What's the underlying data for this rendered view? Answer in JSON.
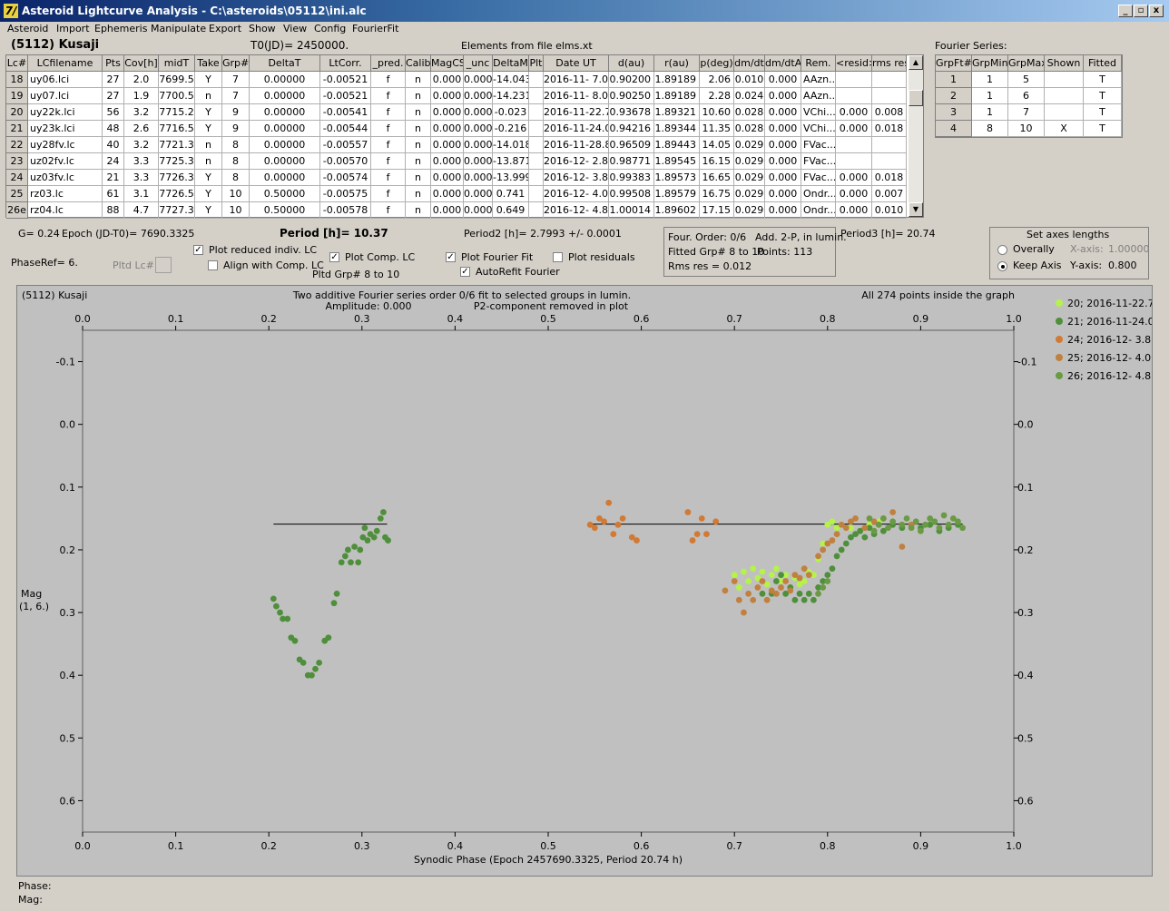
{
  "window": {
    "title": "Asteroid Lightcurve Analysis - C:\\asteroids\\05112\\ini.alc",
    "icon_glyph": "7/",
    "btn_min": "_",
    "btn_restore": "▫",
    "btn_close": "x"
  },
  "menu": [
    "Asteroid",
    "Import",
    "Ephemeris",
    "Manipulate",
    "Export",
    "Show",
    "View",
    "Config",
    "FourierFit"
  ],
  "header": {
    "asteroid": "(5112) Kusaji",
    "t0": "T0(JD)= 2450000.",
    "elements": "Elements from file elms.xt"
  },
  "table": {
    "columns": [
      "Lc#",
      "LCfilename",
      "Pts",
      "Cov[h]",
      "midT",
      "Take",
      "Grp#",
      "DeltaT",
      "LtCorr.",
      "_pred.",
      "Calib.",
      "MagCS",
      "_unc",
      "DeltaM",
      "Plt",
      "Date UT",
      "d(au)",
      "r(au)",
      "p(deg)",
      "dm/dt",
      "dm/dtA",
      "Rem.",
      "<resid>",
      "rms res"
    ],
    "rows": [
      [
        "18",
        "uy06.lci",
        "27",
        "2.0",
        "7699.5",
        "Y",
        "7",
        "0.00000",
        "-0.00521",
        "f",
        "n",
        "0.000",
        "0.000",
        "-14.043",
        "",
        "2016-11- 7.0",
        "0.90200",
        "1.89189",
        "2.06",
        "0.010",
        "0.000",
        "AAzn...",
        "",
        ""
      ],
      [
        "19",
        "uy07.lci",
        "27",
        "1.9",
        "7700.5",
        "n",
        "7",
        "0.00000",
        "-0.00521",
        "f",
        "n",
        "0.000",
        "0.000",
        "-14.231",
        "",
        "2016-11- 8.0",
        "0.90250",
        "1.89189",
        "2.28",
        "0.024",
        "0.000",
        "AAzn...",
        "",
        ""
      ],
      [
        "20",
        "uy22k.lci",
        "56",
        "3.2",
        "7715.2",
        "Y",
        "9",
        "0.00000",
        "-0.00541",
        "f",
        "n",
        "0.000",
        "0.000",
        "-0.023",
        "",
        "2016-11-22.7",
        "0.93678",
        "1.89321",
        "10.60",
        "0.028",
        "0.000",
        "VChi...",
        "0.000",
        "0.008"
      ],
      [
        "21",
        "uy23k.lci",
        "48",
        "2.6",
        "7716.5",
        "Y",
        "9",
        "0.00000",
        "-0.00544",
        "f",
        "n",
        "0.000",
        "0.000",
        "-0.216",
        "",
        "2016-11-24.0",
        "0.94216",
        "1.89344",
        "11.35",
        "0.028",
        "0.000",
        "VChi...",
        "0.000",
        "0.018"
      ],
      [
        "22",
        "uy28fv.lc",
        "40",
        "3.2",
        "7721.3",
        "n",
        "8",
        "0.00000",
        "-0.00557",
        "f",
        "n",
        "0.000",
        "0.000",
        "-14.018",
        "",
        "2016-11-28.8",
        "0.96509",
        "1.89443",
        "14.05",
        "0.029",
        "0.000",
        "FVac...",
        "",
        ""
      ],
      [
        "23",
        "uz02fv.lc",
        "24",
        "3.3",
        "7725.3",
        "n",
        "8",
        "0.00000",
        "-0.00570",
        "f",
        "n",
        "0.000",
        "0.000",
        "-13.871",
        "",
        "2016-12- 2.8",
        "0.98771",
        "1.89545",
        "16.15",
        "0.029",
        "0.000",
        "FVac...",
        "",
        ""
      ],
      [
        "24",
        "uz03fv.lc",
        "21",
        "3.3",
        "7726.3",
        "Y",
        "8",
        "0.00000",
        "-0.00574",
        "f",
        "n",
        "0.000",
        "0.000",
        "-13.999",
        "",
        "2016-12- 3.8",
        "0.99383",
        "1.89573",
        "16.65",
        "0.029",
        "0.000",
        "FVac...",
        "0.000",
        "0.018"
      ],
      [
        "25",
        "rz03.lc",
        "61",
        "3.1",
        "7726.5",
        "Y",
        "10",
        "0.50000",
        "-0.00575",
        "f",
        "n",
        "0.000",
        "0.000",
        "0.741",
        "",
        "2016-12- 4.0",
        "0.99508",
        "1.89579",
        "16.75",
        "0.029",
        "0.000",
        "Ondr...",
        "0.000",
        "0.007"
      ],
      [
        "26e",
        "rz04.lc",
        "88",
        "4.7",
        "7727.3",
        "Y",
        "10",
        "0.50000",
        "-0.00578",
        "f",
        "n",
        "0.000",
        "0.000",
        "0.649",
        "",
        "2016-12- 4.8",
        "1.00014",
        "1.89602",
        "17.15",
        "0.029",
        "0.000",
        "Ondr...",
        "0.000",
        "0.010"
      ]
    ]
  },
  "fourier_series": {
    "title": "Fourier Series:",
    "columns": [
      "GrpFt#",
      "GrpMin",
      "GrpMax",
      "Shown",
      "Fitted"
    ],
    "rows": [
      [
        "1",
        "1",
        "5",
        "",
        "T"
      ],
      [
        "2",
        "1",
        "6",
        "",
        "T"
      ],
      [
        "3",
        "1",
        "7",
        "",
        "T"
      ],
      [
        "4",
        "8",
        "10",
        "X",
        "T"
      ]
    ]
  },
  "info": {
    "g": "G= 0.24",
    "epoch": "Epoch (JD-T0)= 7690.3325",
    "period": "Period [h]= 10.37",
    "period2": "Period2 [h]= 2.7993 +/- 0.0001",
    "period3": "Period3 [h]= 20.74",
    "phaseref": "PhaseRef= 6.",
    "pltd_lc": "Pltd Lc#:",
    "pltd_grp": "Pltd Grp#  8  to  10"
  },
  "checkboxes": {
    "plot_reduced": "Plot reduced indiv. LC",
    "align": "Align with Comp. LC",
    "plot_comp": "Plot Comp. LC",
    "plot_fourier": "Plot Fourier Fit",
    "autorefit": "AutoRefit Fourier",
    "plot_residuals": "Plot residuals",
    "check_mark": "✓"
  },
  "fourier_info": {
    "order": "Four. Order:  0/6",
    "add": "Add. 2-P, in lumin.",
    "fitted": "Fitted Grp# 8 to 10",
    "points": "Points: 113",
    "rms": "Rms res     = 0.012"
  },
  "axes_settings": {
    "title": "Set axes lengths",
    "overally": "Overally",
    "keep_axis": "Keep Axis",
    "x_label": "X-axis:",
    "x_value": "1.00000",
    "y_label": "Y-axis:",
    "y_value": "0.800"
  },
  "plot": {
    "asteroid": "(5112) Kusaji",
    "title1": "Two additive Fourier series order 0/6 fit to selected groups in lumin.",
    "amplitude": "Amplitude: 0.000",
    "p2removed": "P2-component removed in plot",
    "inside": "All 274 points inside the graph",
    "xlabel": "Synodic Phase (Epoch 2457690.3325, Period 20.74 h)",
    "ylabel_line1": "Mag",
    "ylabel_line2": "(1, 6.)"
  },
  "status": {
    "phase": "Phase:",
    "mag": "Mag:"
  },
  "chart_data": {
    "type": "scatter",
    "xlim": [
      0.0,
      1.0
    ],
    "ylim": [
      0.65,
      -0.15
    ],
    "x_ticks": [
      "0.0",
      "0.1",
      "0.2",
      "0.3",
      "0.4",
      "0.5",
      "0.6",
      "0.7",
      "0.8",
      "0.9",
      "1.0"
    ],
    "y_ticks": [
      "-0.1",
      "0.0",
      "0.1",
      "0.2",
      "0.3",
      "0.4",
      "0.5",
      "0.6"
    ],
    "y_tick_values": [
      -0.1,
      0.0,
      0.1,
      0.2,
      0.3,
      0.4,
      0.5,
      0.6
    ],
    "fit_lines": [
      {
        "x": [
          0.205,
          0.327
        ],
        "y": [
          0.159,
          0.159
        ]
      },
      {
        "x": [
          0.545,
          0.945
        ],
        "y": [
          0.159,
          0.159
        ]
      }
    ],
    "series": [
      {
        "name": "20; 2016-11-22.7",
        "color": "#b5f24a",
        "points": [
          [
            0.7,
            0.24
          ],
          [
            0.705,
            0.26
          ],
          [
            0.71,
            0.235
          ],
          [
            0.715,
            0.25
          ],
          [
            0.72,
            0.23
          ],
          [
            0.725,
            0.245
          ],
          [
            0.73,
            0.235
          ],
          [
            0.735,
            0.255
          ],
          [
            0.74,
            0.24
          ],
          [
            0.745,
            0.23
          ],
          [
            0.75,
            0.25
          ],
          [
            0.755,
            0.24
          ],
          [
            0.76,
            0.26
          ],
          [
            0.765,
            0.245
          ],
          [
            0.77,
            0.255
          ],
          [
            0.775,
            0.25
          ],
          [
            0.78,
            0.235
          ],
          [
            0.785,
            0.24
          ],
          [
            0.79,
            0.215
          ],
          [
            0.795,
            0.19
          ],
          [
            0.8,
            0.16
          ],
          [
            0.805,
            0.155
          ],
          [
            0.81,
            0.165
          ],
          [
            0.815,
            0.16
          ],
          [
            0.825,
            0.165
          ],
          [
            0.835,
            0.17
          ],
          [
            0.845,
            0.16
          ],
          [
            0.855,
            0.155
          ]
        ]
      },
      {
        "name": "21; 2016-11-24.0",
        "color": "#4f8f3c",
        "points": [
          [
            0.205,
            0.278
          ],
          [
            0.208,
            0.29
          ],
          [
            0.212,
            0.3
          ],
          [
            0.215,
            0.31
          ],
          [
            0.22,
            0.31
          ],
          [
            0.224,
            0.34
          ],
          [
            0.228,
            0.345
          ],
          [
            0.233,
            0.375
          ],
          [
            0.237,
            0.38
          ],
          [
            0.242,
            0.4
          ],
          [
            0.246,
            0.4
          ],
          [
            0.25,
            0.39
          ],
          [
            0.254,
            0.38
          ],
          [
            0.26,
            0.345
          ],
          [
            0.264,
            0.34
          ],
          [
            0.27,
            0.285
          ],
          [
            0.273,
            0.27
          ],
          [
            0.278,
            0.22
          ],
          [
            0.282,
            0.21
          ],
          [
            0.285,
            0.2
          ],
          [
            0.288,
            0.22
          ],
          [
            0.292,
            0.195
          ],
          [
            0.296,
            0.22
          ],
          [
            0.298,
            0.2
          ],
          [
            0.301,
            0.18
          ],
          [
            0.303,
            0.165
          ],
          [
            0.306,
            0.185
          ],
          [
            0.309,
            0.175
          ],
          [
            0.313,
            0.18
          ],
          [
            0.316,
            0.17
          ],
          [
            0.32,
            0.15
          ],
          [
            0.323,
            0.14
          ],
          [
            0.325,
            0.18
          ],
          [
            0.328,
            0.185
          ],
          [
            0.73,
            0.27
          ],
          [
            0.74,
            0.27
          ],
          [
            0.745,
            0.25
          ],
          [
            0.75,
            0.24
          ],
          [
            0.755,
            0.27
          ],
          [
            0.76,
            0.26
          ],
          [
            0.765,
            0.28
          ],
          [
            0.77,
            0.27
          ],
          [
            0.775,
            0.28
          ],
          [
            0.78,
            0.27
          ],
          [
            0.785,
            0.28
          ],
          [
            0.79,
            0.26
          ],
          [
            0.795,
            0.25
          ],
          [
            0.8,
            0.24
          ],
          [
            0.805,
            0.23
          ],
          [
            0.81,
            0.21
          ],
          [
            0.815,
            0.2
          ],
          [
            0.82,
            0.19
          ],
          [
            0.825,
            0.18
          ],
          [
            0.83,
            0.175
          ],
          [
            0.835,
            0.17
          ],
          [
            0.84,
            0.18
          ],
          [
            0.845,
            0.165
          ],
          [
            0.85,
            0.175
          ],
          [
            0.86,
            0.17
          ],
          [
            0.87,
            0.16
          ],
          [
            0.88,
            0.165
          ],
          [
            0.89,
            0.16
          ],
          [
            0.9,
            0.165
          ],
          [
            0.91,
            0.16
          ],
          [
            0.92,
            0.17
          ],
          [
            0.93,
            0.165
          ],
          [
            0.94,
            0.16
          ]
        ]
      },
      {
        "name": "24; 2016-12- 3.8",
        "color": "#d07a36",
        "points": [
          [
            0.545,
            0.16
          ],
          [
            0.55,
            0.165
          ],
          [
            0.555,
            0.15
          ],
          [
            0.56,
            0.155
          ],
          [
            0.565,
            0.125
          ],
          [
            0.57,
            0.175
          ],
          [
            0.575,
            0.16
          ],
          [
            0.58,
            0.15
          ],
          [
            0.59,
            0.18
          ],
          [
            0.595,
            0.185
          ],
          [
            0.65,
            0.14
          ],
          [
            0.655,
            0.185
          ],
          [
            0.66,
            0.175
          ],
          [
            0.665,
            0.15
          ],
          [
            0.67,
            0.175
          ],
          [
            0.68,
            0.155
          ]
        ]
      },
      {
        "name": "25; 2016-12- 4.0",
        "color": "#c08040",
        "points": [
          [
            0.69,
            0.265
          ],
          [
            0.7,
            0.25
          ],
          [
            0.705,
            0.28
          ],
          [
            0.71,
            0.3
          ],
          [
            0.715,
            0.27
          ],
          [
            0.72,
            0.28
          ],
          [
            0.725,
            0.26
          ],
          [
            0.73,
            0.25
          ],
          [
            0.735,
            0.28
          ],
          [
            0.74,
            0.265
          ],
          [
            0.745,
            0.27
          ],
          [
            0.75,
            0.26
          ],
          [
            0.755,
            0.25
          ],
          [
            0.76,
            0.265
          ],
          [
            0.765,
            0.24
          ],
          [
            0.77,
            0.245
          ],
          [
            0.775,
            0.23
          ],
          [
            0.78,
            0.24
          ],
          [
            0.79,
            0.21
          ],
          [
            0.795,
            0.2
          ],
          [
            0.8,
            0.19
          ],
          [
            0.805,
            0.185
          ],
          [
            0.81,
            0.175
          ],
          [
            0.815,
            0.16
          ],
          [
            0.82,
            0.165
          ],
          [
            0.825,
            0.155
          ],
          [
            0.83,
            0.15
          ],
          [
            0.84,
            0.165
          ],
          [
            0.85,
            0.155
          ],
          [
            0.86,
            0.15
          ],
          [
            0.87,
            0.14
          ],
          [
            0.88,
            0.195
          ],
          [
            0.89,
            0.16
          ]
        ]
      },
      {
        "name": "26; 2016-12- 4.8",
        "color": "#6a9a44",
        "points": [
          [
            0.88,
            0.16
          ],
          [
            0.885,
            0.15
          ],
          [
            0.89,
            0.165
          ],
          [
            0.895,
            0.155
          ],
          [
            0.9,
            0.17
          ],
          [
            0.905,
            0.16
          ],
          [
            0.91,
            0.15
          ],
          [
            0.915,
            0.155
          ],
          [
            0.92,
            0.165
          ],
          [
            0.925,
            0.145
          ],
          [
            0.93,
            0.16
          ],
          [
            0.935,
            0.15
          ],
          [
            0.94,
            0.155
          ],
          [
            0.945,
            0.165
          ],
          [
            0.87,
            0.155
          ],
          [
            0.865,
            0.165
          ],
          [
            0.86,
            0.15
          ],
          [
            0.855,
            0.16
          ],
          [
            0.85,
            0.17
          ],
          [
            0.845,
            0.15
          ],
          [
            0.795,
            0.26
          ],
          [
            0.8,
            0.25
          ],
          [
            0.79,
            0.27
          ]
        ]
      }
    ]
  }
}
